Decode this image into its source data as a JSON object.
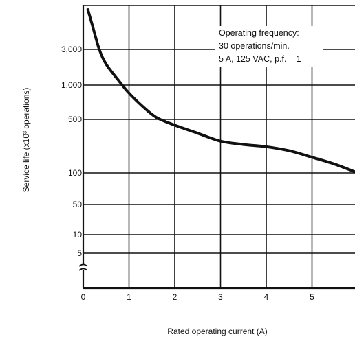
{
  "chart_data": {
    "type": "line",
    "title": "",
    "xlabel": "Rated operating current (A)",
    "ylabel": "Service life (x10³ operations)",
    "xlim": [
      0,
      6
    ],
    "x_ticks": [
      0,
      1,
      2,
      3,
      4,
      5
    ],
    "x_tick_labels": [
      "0",
      "1",
      "2",
      "3",
      "4",
      "5"
    ],
    "y_ticks": [
      5,
      10,
      50,
      100,
      500,
      1000,
      3000
    ],
    "y_tick_labels": [
      "5",
      "10",
      "50",
      "100",
      "500",
      "1,000",
      "3,000"
    ],
    "y_scale": "non-uniform (axis break near bottom)",
    "grid": true,
    "annotation": [
      "Operating frequency:",
      "30 operations/min.",
      "5 A, 125 VAC, p.f. = 1"
    ],
    "series": [
      {
        "x": [
          0.1,
          0.2,
          0.35,
          0.5,
          0.75,
          1.0,
          1.3,
          1.6,
          2.0,
          2.5,
          3.0,
          3.5,
          4.0,
          4.5,
          5.0,
          5.5,
          6.0
        ],
        "y": [
          7000,
          5000,
          3000,
          1900,
          1200,
          850,
          650,
          520,
          420,
          330,
          260,
          235,
          220,
          195,
          160,
          130,
          100
        ]
      }
    ]
  }
}
